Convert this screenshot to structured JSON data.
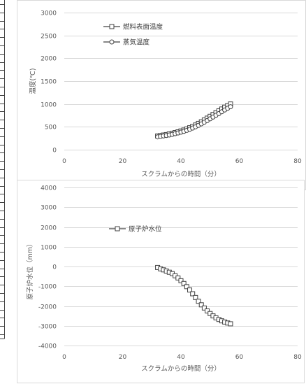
{
  "chart_data": [
    {
      "type": "line",
      "title": "",
      "xlabel": "スクラムからの時間（分）",
      "ylabel": "温度(℃)",
      "xlim": [
        0,
        80
      ],
      "ylim": [
        0,
        3000
      ],
      "xticks": [
        0,
        20,
        40,
        60,
        80
      ],
      "yticks": [
        0,
        500,
        1000,
        1500,
        2000,
        2500,
        3000
      ],
      "grid": "horizontal",
      "legend": "top-left",
      "x": [
        32,
        33,
        34,
        35,
        36,
        37,
        38,
        39,
        40,
        41,
        42,
        43,
        44,
        45,
        46,
        47,
        48,
        49,
        50,
        51,
        52,
        53,
        54,
        55,
        56,
        57
      ],
      "series": [
        {
          "name": "燃料表面温度",
          "marker": "square",
          "values": [
            300,
            310,
            320,
            330,
            345,
            360,
            375,
            390,
            410,
            430,
            455,
            480,
            510,
            540,
            575,
            610,
            650,
            690,
            730,
            770,
            810,
            850,
            890,
            930,
            965,
            1000
          ]
        },
        {
          "name": "蒸気温度",
          "marker": "circle",
          "values": [
            280,
            290,
            300,
            310,
            322,
            335,
            350,
            365,
            382,
            400,
            422,
            446,
            472,
            500,
            532,
            565,
            600,
            637,
            675,
            713,
            752,
            790,
            830,
            868,
            905,
            940
          ]
        }
      ]
    },
    {
      "type": "line",
      "title": "",
      "xlabel": "スクラムからの時間（分）",
      "ylabel": "原子炉水位（mm）",
      "xlim": [
        0,
        80
      ],
      "ylim": [
        -4000,
        4000
      ],
      "xticks": [
        0,
        20,
        40,
        60,
        80
      ],
      "yticks": [
        -4000,
        -3000,
        -2000,
        -1000,
        0,
        1000,
        2000,
        3000,
        4000
      ],
      "grid": "horizontal",
      "legend": "top-left",
      "x": [
        32,
        33,
        34,
        35,
        36,
        37,
        38,
        39,
        40,
        41,
        42,
        43,
        44,
        45,
        46,
        47,
        48,
        49,
        50,
        51,
        52,
        53,
        54,
        55,
        56,
        57
      ],
      "series": [
        {
          "name": "原子炉水位",
          "marker": "square",
          "values": [
            -50,
            -120,
            -170,
            -230,
            -290,
            -360,
            -470,
            -580,
            -720,
            -860,
            -1020,
            -1190,
            -1380,
            -1570,
            -1760,
            -1940,
            -2100,
            -2250,
            -2380,
            -2500,
            -2600,
            -2680,
            -2750,
            -2810,
            -2860,
            -2900
          ]
        }
      ]
    }
  ],
  "colors": {
    "series": "#404040",
    "grid": "#d9d9d9",
    "text": "#595959"
  }
}
